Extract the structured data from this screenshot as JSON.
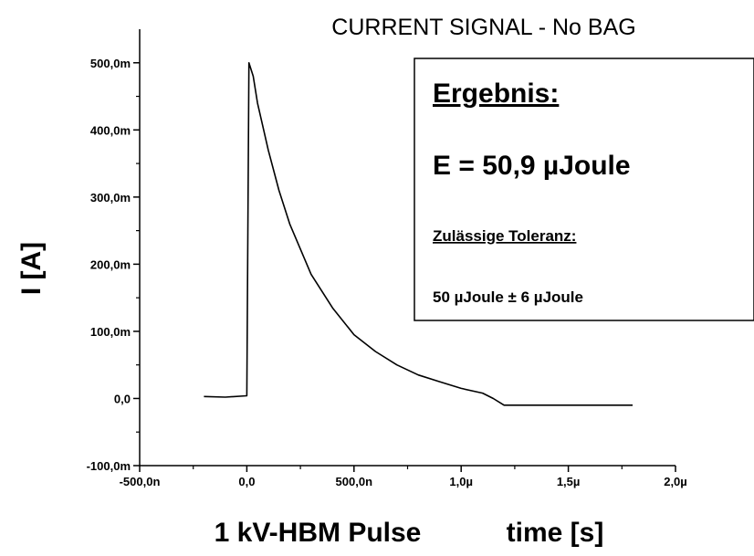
{
  "chart_data": {
    "type": "line",
    "title": "CURRENT SIGNAL - No BAG",
    "ylabel": "I [A]",
    "xlabel_left": "1 kV-HBM Pulse",
    "xlabel_right": "time [s]",
    "xlim": [
      -5e-07,
      2e-06
    ],
    "ylim": [
      -0.1,
      0.55
    ],
    "x_ticks": [
      {
        "value": -5e-07,
        "label": "-500,0n"
      },
      {
        "value": 0,
        "label": "0,0"
      },
      {
        "value": 5e-07,
        "label": "500,0n"
      },
      {
        "value": 1e-06,
        "label": "1,0µ"
      },
      {
        "value": 1.5e-06,
        "label": "1,5µ"
      },
      {
        "value": 2e-06,
        "label": "2,0µ"
      }
    ],
    "y_ticks": [
      {
        "value": -0.1,
        "label": "-100,0m"
      },
      {
        "value": 0,
        "label": "0,0"
      },
      {
        "value": 0.1,
        "label": "100,0m"
      },
      {
        "value": 0.2,
        "label": "200,0m"
      },
      {
        "value": 0.3,
        "label": "300,0m"
      },
      {
        "value": 0.4,
        "label": "400,0m"
      },
      {
        "value": 0.5,
        "label": "500,0m"
      }
    ],
    "grid": false,
    "series": [
      {
        "x": [
          -2e-07,
          -1e-07,
          0,
          1e-08,
          3e-08,
          5e-08,
          1e-07,
          1.5e-07,
          2e-07,
          3e-07,
          4e-07,
          5e-07,
          6e-07,
          7e-07,
          8e-07,
          9e-07,
          1e-06,
          1.1e-06,
          1.15e-06,
          1.2e-06,
          1.4e-06,
          1.6e-06,
          1.8e-06
        ],
        "y": [
          0.003,
          0.002,
          0.004,
          0.5,
          0.48,
          0.44,
          0.37,
          0.31,
          0.26,
          0.185,
          0.135,
          0.095,
          0.07,
          0.05,
          0.035,
          0.025,
          0.015,
          0.008,
          0.0,
          -0.01,
          -0.01,
          -0.01,
          -0.01
        ],
        "color": "#000000"
      }
    ]
  },
  "result_box": {
    "heading": "Ergebnis:",
    "result": "E = 50,9 µJoule",
    "tolerance_label": "Zulässige Toleranz:",
    "tolerance_value": "50 µJoule ± 6 µJoule"
  }
}
